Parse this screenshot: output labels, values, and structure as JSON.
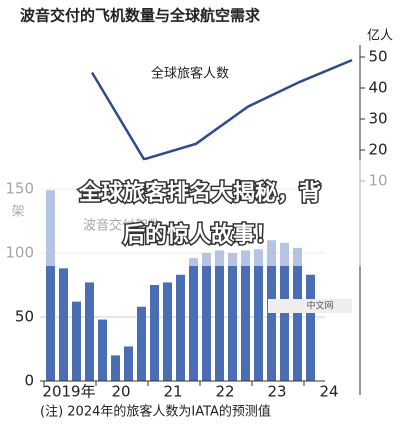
{
  "title": "波音交付的飞机数量与全球航空需求",
  "overlay_title": [
    "全球旅客排名大揭秘，背",
    "后的惊人故事！"
  ],
  "note": "(注) 2024年的旅客人数为IATA的预测值",
  "watermark": "中文网",
  "chart_data": [
    {
      "type": "line",
      "name": "全球旅客人数",
      "unit": "亿人",
      "color": "#2d4b8e",
      "categories": [
        "2019年",
        "20",
        "21",
        "22",
        "23",
        "24"
      ],
      "values": [
        45,
        17,
        22,
        34,
        42,
        49
      ],
      "ylim": [
        10,
        50
      ],
      "yticks": [
        10,
        20,
        30,
        40,
        50
      ]
    },
    {
      "type": "bar",
      "name": "波音交付架数",
      "unit": "架",
      "color": "#4a6db3",
      "categories": [
        null,
        null,
        null,
        null,
        null,
        null,
        null,
        null,
        null,
        null,
        null,
        null,
        null,
        null,
        null,
        null,
        null,
        null,
        null,
        null,
        null
      ],
      "values": [
        149,
        88,
        62,
        77,
        48,
        20,
        27,
        58,
        75,
        77,
        83,
        96,
        100,
        102,
        100,
        102,
        103,
        110,
        108,
        104,
        83
      ],
      "ylim": [
        0,
        150
      ],
      "yticks": [
        0,
        50,
        100,
        150
      ],
      "grid": true
    }
  ]
}
